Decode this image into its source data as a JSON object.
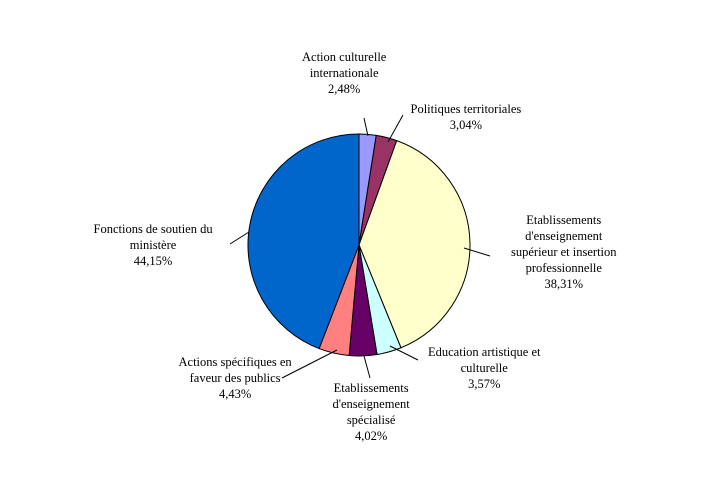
{
  "chart_data": {
    "type": "pie",
    "title": "",
    "slices": [
      {
        "label": [
          "Action culturelle",
          "internationale"
        ],
        "value_text": "2,48%",
        "value": 2.48,
        "color": "#9999FF"
      },
      {
        "label": [
          "Politiques territoriales"
        ],
        "value_text": "3,04%",
        "value": 3.04,
        "color": "#993366"
      },
      {
        "label": [
          "Etablissements",
          "d'enseignement",
          "supérieur et insertion",
          "professionnelle"
        ],
        "value_text": "38,31%",
        "value": 38.31,
        "color": "#FFFFCC"
      },
      {
        "label": [
          "Education artistique et",
          "culturelle"
        ],
        "value_text": "3,57%",
        "value": 3.57,
        "color": "#CCFFFF"
      },
      {
        "label": [
          "Etablissements",
          "d'enseignement",
          "spécialisé"
        ],
        "value_text": "4,02%",
        "value": 4.02,
        "color": "#660066"
      },
      {
        "label": [
          "Actions spécifiques en",
          "faveur des publics"
        ],
        "value_text": "4,43%",
        "value": 4.43,
        "color": "#FF8080"
      },
      {
        "label": [
          "Fonctions de soutien du",
          "ministère"
        ],
        "value_text": "44,15%",
        "value": 44.15,
        "color": "#0066CC"
      }
    ],
    "legend": "none",
    "start": "12 o'clock, clockwise"
  }
}
